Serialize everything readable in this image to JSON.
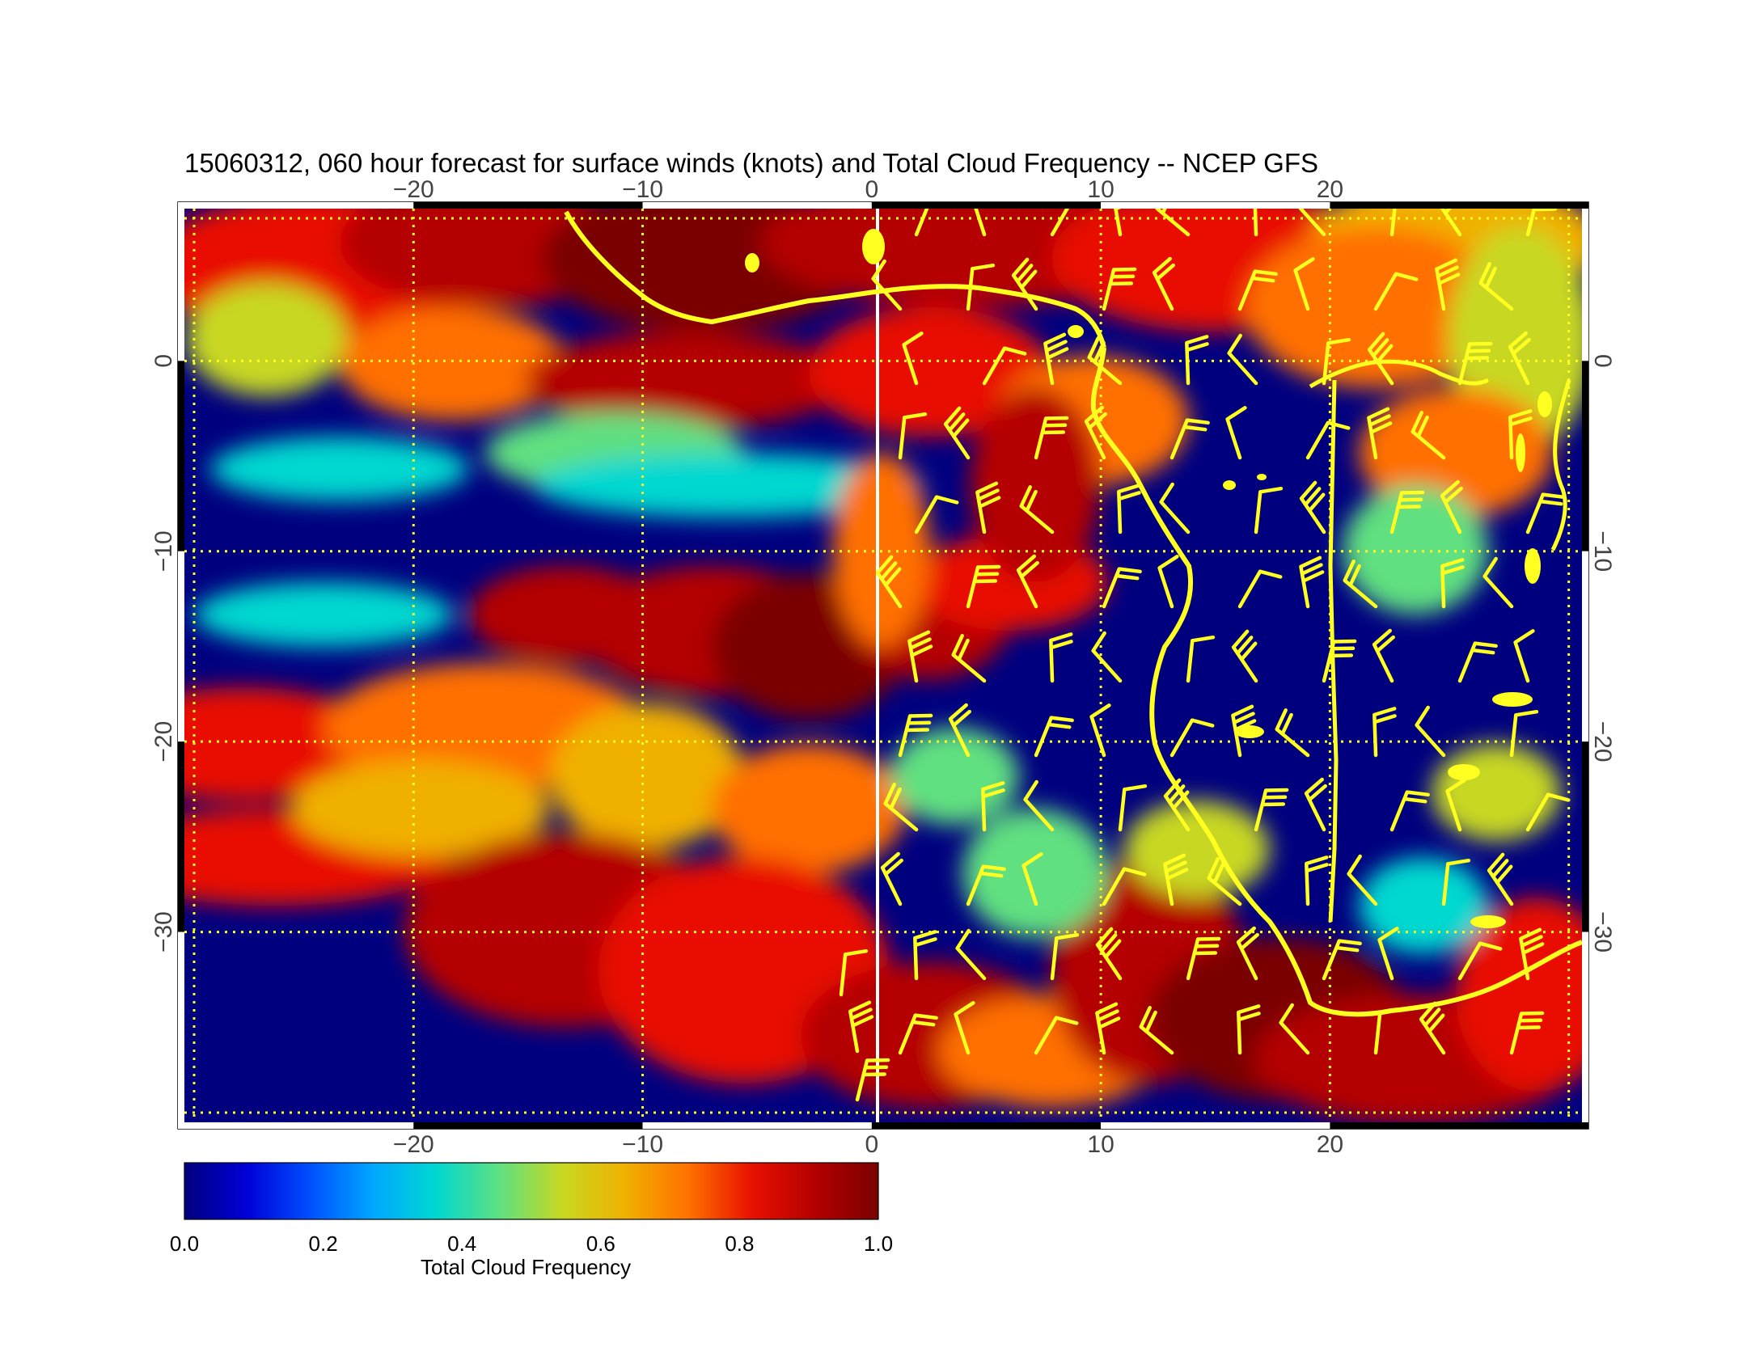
{
  "title": "15060312, 060 hour forecast for surface winds (knots) and Total Cloud Frequency -- NCEP GFS",
  "colors": {
    "scale": [
      "#00007f",
      "#0000d8",
      "#0050ff",
      "#00a8ff",
      "#00d8d0",
      "#60e080",
      "#c8d820",
      "#f0b000",
      "#ff7000",
      "#e81000",
      "#b40000",
      "#7a0000"
    ],
    "wind_barb": "#ffff20",
    "coastline": "#ffff20",
    "gridline": "#ffff20",
    "meridian_zero": "#ffffff"
  },
  "map": {
    "lon_range": [
      -30,
      31
    ],
    "lat_range": [
      -40,
      8
    ],
    "lon_ticks": [
      {
        "value": -20,
        "label": "−20"
      },
      {
        "value": -10,
        "label": "−10"
      },
      {
        "value": 0,
        "label": "0"
      },
      {
        "value": 10,
        "label": "10"
      },
      {
        "value": 20,
        "label": "20"
      }
    ],
    "lat_ticks": [
      {
        "value": 0,
        "label": "0"
      },
      {
        "value": -10,
        "label": "−10"
      },
      {
        "value": -20,
        "label": "−20"
      },
      {
        "value": -30,
        "label": "−30"
      }
    ]
  },
  "colorbar": {
    "ticks": [
      "0.0",
      "0.2",
      "0.4",
      "0.6",
      "0.8",
      "1.0"
    ],
    "title": "Total Cloud Frequency",
    "range": [
      0,
      1
    ]
  }
}
